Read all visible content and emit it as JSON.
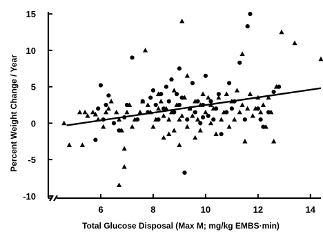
{
  "chart_data": {
    "type": "scatter",
    "xlabel": "Total Glucose Disposal (Max M; mg/kg EMBS·min)",
    "ylabel": "Percent Weight Change / Year",
    "xlim": [
      4.0,
      14.4
    ],
    "ylim": [
      -10.3,
      15.3
    ],
    "x_ticks": [
      6,
      8,
      10,
      12,
      14
    ],
    "y_ticks": [
      15,
      10,
      5,
      0,
      -5,
      -10
    ],
    "x_tick_labels": [
      "6",
      "8",
      "10",
      "12",
      "14"
    ],
    "y_tick_labels": [
      "15",
      "10",
      "5",
      "0",
      "-5",
      "-10"
    ],
    "grid": false,
    "legend": "none",
    "axis_break": "x-axis near origin",
    "colors": {
      "markers": "#000000",
      "line": "#000000"
    },
    "series": [
      {
        "marker": "triangle",
        "points": [
          [
            4.6,
            0.0
          ],
          [
            4.8,
            -3.0
          ],
          [
            5.2,
            1.5
          ],
          [
            5.3,
            -3.0
          ],
          [
            5.4,
            1.5
          ],
          [
            5.5,
            1.0
          ],
          [
            5.7,
            1.5
          ],
          [
            5.8,
            1.2
          ],
          [
            5.9,
            0.5
          ],
          [
            6.1,
            -0.5
          ],
          [
            6.2,
            1.5
          ],
          [
            6.3,
            2.0
          ],
          [
            6.4,
            3.0
          ],
          [
            6.6,
            1.5
          ],
          [
            6.7,
            0.5
          ],
          [
            6.8,
            -1.0
          ],
          [
            6.9,
            -3.5
          ],
          [
            6.7,
            -8.5
          ],
          [
            6.9,
            -6.0
          ],
          [
            7.0,
            1.5
          ],
          [
            7.1,
            2.5
          ],
          [
            7.2,
            -0.5
          ],
          [
            7.3,
            0.5
          ],
          [
            7.5,
            1.5
          ],
          [
            7.6,
            3.0
          ],
          [
            7.7,
            10.0
          ],
          [
            7.8,
            2.5
          ],
          [
            7.9,
            1.5
          ],
          [
            8.0,
            -0.5
          ],
          [
            8.1,
            0.5
          ],
          [
            8.2,
            2.0
          ],
          [
            8.2,
            4.0
          ],
          [
            8.3,
            3.0
          ],
          [
            8.4,
            1.0
          ],
          [
            8.5,
            2.0
          ],
          [
            8.6,
            0.5
          ],
          [
            8.6,
            -1.5
          ],
          [
            8.7,
            1.5
          ],
          [
            8.8,
            4.5
          ],
          [
            8.8,
            -1.0
          ],
          [
            8.9,
            2.5
          ],
          [
            9.0,
            0.5
          ],
          [
            9.0,
            -3.0
          ],
          [
            9.1,
            1.0
          ],
          [
            9.2,
            3.5
          ],
          [
            9.3,
            6.5
          ],
          [
            9.3,
            -0.5
          ],
          [
            9.4,
            2.0
          ],
          [
            9.5,
            1.0
          ],
          [
            9.6,
            3.0
          ],
          [
            9.6,
            -2.0
          ],
          [
            9.7,
            0.5
          ],
          [
            9.8,
            2.5
          ],
          [
            9.1,
            14.0
          ],
          [
            9.9,
            4.0
          ],
          [
            10.0,
            1.5
          ],
          [
            10.1,
            3.5
          ],
          [
            10.2,
            0.0
          ],
          [
            10.3,
            2.0
          ],
          [
            10.4,
            -1.5
          ],
          [
            10.5,
            3.5
          ],
          [
            10.6,
            0.5
          ],
          [
            10.7,
            1.5
          ],
          [
            10.8,
            4.0
          ],
          [
            10.9,
            -0.5
          ],
          [
            11.0,
            3.0
          ],
          [
            11.1,
            0.5
          ],
          [
            11.2,
            4.5
          ],
          [
            11.3,
            1.5
          ],
          [
            11.4,
            2.5
          ],
          [
            11.4,
            9.5
          ],
          [
            11.5,
            -2.5
          ],
          [
            11.6,
            2.0
          ],
          [
            11.7,
            4.0
          ],
          [
            11.8,
            1.0
          ],
          [
            11.9,
            2.0
          ],
          [
            12.0,
            3.5
          ],
          [
            12.1,
            1.5
          ],
          [
            12.2,
            2.5
          ],
          [
            12.3,
            -0.5
          ],
          [
            12.4,
            3.5
          ],
          [
            12.5,
            1.5
          ],
          [
            12.6,
            -2.5
          ],
          [
            12.7,
            5.0
          ],
          [
            12.9,
            12.5
          ],
          [
            13.4,
            11.0
          ],
          [
            14.4,
            8.8
          ],
          [
            10.2,
            2.5
          ],
          [
            9.8,
            -1.0
          ],
          [
            8.4,
            -2.0
          ]
        ]
      },
      {
        "marker": "circle",
        "points": [
          [
            5.8,
            -2.3
          ],
          [
            5.9,
            2.0
          ],
          [
            6.0,
            5.2
          ],
          [
            6.1,
            0.5
          ],
          [
            6.2,
            2.5
          ],
          [
            6.3,
            3.8
          ],
          [
            6.5,
            0.0
          ],
          [
            6.7,
            -1.0
          ],
          [
            6.9,
            0.8
          ],
          [
            7.0,
            2.5
          ],
          [
            7.2,
            9.0
          ],
          [
            7.4,
            0.5
          ],
          [
            7.6,
            3.0
          ],
          [
            7.8,
            1.5
          ],
          [
            7.9,
            3.5
          ],
          [
            8.0,
            4.5
          ],
          [
            8.1,
            2.5
          ],
          [
            8.2,
            0.5
          ],
          [
            8.3,
            4.0
          ],
          [
            8.4,
            2.0
          ],
          [
            8.5,
            5.0
          ],
          [
            8.6,
            3.0
          ],
          [
            8.7,
            6.0
          ],
          [
            8.8,
            1.5
          ],
          [
            8.9,
            4.0
          ],
          [
            9.0,
            7.5
          ],
          [
            9.0,
            2.5
          ],
          [
            9.1,
            3.5
          ],
          [
            9.2,
            -6.8
          ],
          [
            9.3,
            0.5
          ],
          [
            9.4,
            2.0
          ],
          [
            9.5,
            5.5
          ],
          [
            9.6,
            1.5
          ],
          [
            9.7,
            3.0
          ],
          [
            9.8,
            0.0
          ],
          [
            9.9,
            2.5
          ],
          [
            10.0,
            6.5
          ],
          [
            10.1,
            1.0
          ],
          [
            10.2,
            3.0
          ],
          [
            10.3,
            0.5
          ],
          [
            10.4,
            2.0
          ],
          [
            10.6,
            -1.5
          ],
          [
            10.8,
            1.5
          ],
          [
            10.9,
            5.5
          ],
          [
            11.0,
            2.0
          ],
          [
            11.1,
            3.0
          ],
          [
            11.3,
            8.3
          ],
          [
            11.5,
            0.5
          ],
          [
            11.6,
            13.3
          ],
          [
            11.7,
            15.0
          ],
          [
            12.0,
            2.0
          ],
          [
            12.1,
            0.5
          ],
          [
            12.2,
            -0.5
          ],
          [
            12.4,
            1.5
          ],
          [
            12.6,
            4.3
          ],
          [
            12.8,
            5.0
          ],
          [
            10.5,
            4.0
          ],
          [
            9.9,
            0.8
          ]
        ]
      }
    ],
    "fit_line": {
      "x": [
        4.7,
        14.4
      ],
      "y": [
        -0.3,
        4.8
      ]
    }
  }
}
